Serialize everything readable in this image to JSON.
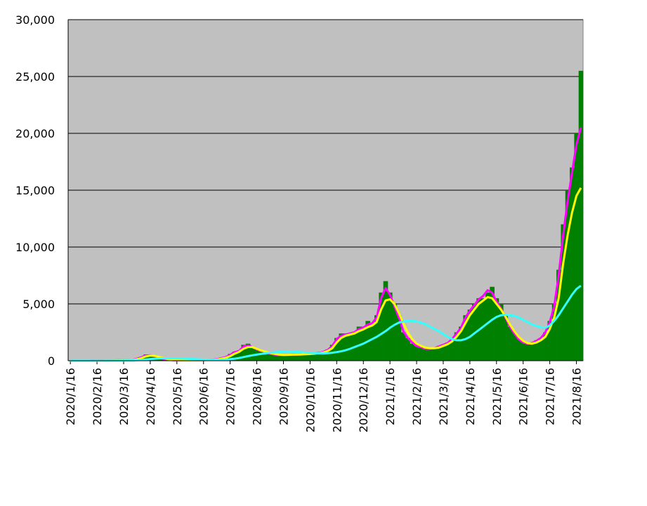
{
  "chart_data": {
    "type": "bar",
    "categories": [
      "2020/1/16",
      null,
      null,
      null,
      null,
      null,
      "2020/2/16",
      null,
      null,
      null,
      null,
      null,
      "2020/3/16",
      null,
      null,
      null,
      null,
      null,
      "2020/4/16",
      null,
      null,
      null,
      null,
      null,
      "2020/5/16",
      null,
      null,
      null,
      null,
      null,
      "2020/6/16",
      null,
      null,
      null,
      null,
      null,
      "2020/7/16",
      null,
      null,
      null,
      null,
      null,
      "2020/8/16",
      null,
      null,
      null,
      null,
      null,
      "2020/9/16",
      null,
      null,
      null,
      null,
      null,
      "2020/10/16",
      null,
      null,
      null,
      null,
      null,
      "2020/11/16",
      null,
      null,
      null,
      null,
      null,
      "2020/12/16",
      null,
      null,
      null,
      null,
      null,
      "2021/1/16",
      null,
      null,
      null,
      null,
      null,
      "2021/2/16",
      null,
      null,
      null,
      null,
      null,
      "2021/3/16",
      null,
      null,
      null,
      null,
      null,
      "2021/4/16",
      null,
      null,
      null,
      null,
      null,
      "2021/5/16",
      null,
      null,
      null,
      null,
      null,
      "2021/6/16",
      null,
      null,
      null,
      null,
      null,
      "2021/7/16",
      null,
      null,
      null,
      null,
      null,
      "2021/8/16",
      null
    ],
    "series": [
      {
        "type": "bar",
        "color": "#008000",
        "values": [
          0,
          0,
          0,
          0,
          0,
          5,
          10,
          15,
          20,
          20,
          30,
          50,
          40,
          50,
          80,
          200,
          350,
          550,
          500,
          400,
          250,
          150,
          80,
          50,
          30,
          20,
          30,
          40,
          40,
          50,
          50,
          60,
          80,
          150,
          250,
          350,
          600,
          800,
          900,
          1400,
          1500,
          1200,
          1000,
          900,
          800,
          600,
          550,
          500,
          500,
          550,
          550,
          550,
          550,
          600,
          600,
          650,
          700,
          800,
          1000,
          1400,
          2000,
          2400,
          2400,
          2400,
          2500,
          3000,
          3000,
          3500,
          3200,
          4000,
          6000,
          7000,
          6000,
          5000,
          4000,
          2500,
          2000,
          1500,
          1300,
          1200,
          1000,
          1000,
          1100,
          1300,
          1400,
          1600,
          2000,
          2500,
          3000,
          4000,
          4500,
          5000,
          5500,
          5500,
          6000,
          6500,
          5500,
          5000,
          4000,
          3000,
          2500,
          2000,
          1700,
          1500,
          1600,
          1800,
          2000,
          2500,
          3500,
          5000,
          8000,
          12000,
          15000,
          17000,
          20000,
          25500
        ]
      },
      {
        "type": "line",
        "color": "#ff00ff",
        "values": [
          0,
          0,
          0,
          0,
          2,
          5,
          10,
          14,
          18,
          20,
          28,
          40,
          42,
          48,
          70,
          170,
          300,
          450,
          480,
          400,
          260,
          160,
          90,
          50,
          35,
          30,
          35,
          40,
          45,
          50,
          55,
          60,
          75,
          130,
          220,
          320,
          520,
          750,
          850,
          1250,
          1350,
          1200,
          1000,
          850,
          750,
          600,
          550,
          500,
          500,
          520,
          540,
          540,
          550,
          580,
          600,
          640,
          680,
          780,
          950,
          1300,
          1900,
          2200,
          2300,
          2400,
          2500,
          2800,
          2900,
          3200,
          3300,
          3800,
          5500,
          6400,
          5800,
          4800,
          3800,
          2600,
          2000,
          1600,
          1300,
          1200,
          1050,
          1050,
          1100,
          1250,
          1400,
          1550,
          1900,
          2400,
          2900,
          3800,
          4400,
          4900,
          5400,
          5700,
          6200,
          6000,
          5200,
          4600,
          3800,
          3000,
          2400,
          1900,
          1600,
          1500,
          1550,
          1750,
          2000,
          2500,
          3400,
          4800,
          7500,
          11000,
          14000,
          16500,
          19000,
          20500
        ]
      },
      {
        "type": "line",
        "color": "#ffff00",
        "values": [
          0,
          0,
          0,
          0,
          1,
          3,
          6,
          10,
          14,
          18,
          24,
          32,
          38,
          44,
          60,
          120,
          230,
          380,
          450,
          430,
          330,
          230,
          140,
          80,
          50,
          40,
          38,
          40,
          45,
          50,
          52,
          58,
          65,
          100,
          170,
          260,
          400,
          620,
          780,
          1050,
          1200,
          1200,
          1050,
          900,
          800,
          680,
          600,
          540,
          510,
          520,
          530,
          540,
          550,
          570,
          590,
          620,
          660,
          720,
          860,
          1100,
          1600,
          2000,
          2200,
          2300,
          2400,
          2600,
          2750,
          2950,
          3100,
          3400,
          4500,
          5300,
          5400,
          5000,
          4200,
          3300,
          2500,
          1900,
          1500,
          1300,
          1150,
          1100,
          1100,
          1150,
          1300,
          1450,
          1700,
          2100,
          2600,
          3300,
          4000,
          4500,
          5000,
          5300,
          5600,
          5500,
          5000,
          4500,
          3900,
          3200,
          2600,
          2100,
          1750,
          1550,
          1500,
          1600,
          1800,
          2100,
          2800,
          3800,
          5500,
          8500,
          11000,
          13000,
          14500,
          15200
        ]
      },
      {
        "type": "line",
        "color": "#33ffff",
        "values": [
          0,
          0,
          0,
          0,
          0,
          1,
          2,
          4,
          6,
          8,
          10,
          14,
          18,
          22,
          28,
          45,
          70,
          110,
          150,
          180,
          200,
          210,
          215,
          210,
          205,
          195,
          180,
          160,
          140,
          120,
          100,
          90,
          80,
          80,
          90,
          110,
          140,
          180,
          240,
          320,
          400,
          480,
          540,
          600,
          650,
          700,
          740,
          770,
          790,
          800,
          790,
          770,
          750,
          720,
          690,
          660,
          640,
          640,
          660,
          700,
          760,
          830,
          920,
          1050,
          1200,
          1350,
          1500,
          1700,
          1900,
          2100,
          2350,
          2600,
          2900,
          3150,
          3350,
          3450,
          3500,
          3500,
          3450,
          3350,
          3200,
          3000,
          2800,
          2600,
          2350,
          2100,
          1900,
          1800,
          1800,
          1900,
          2100,
          2400,
          2700,
          3000,
          3300,
          3600,
          3850,
          4000,
          4050,
          4000,
          3950,
          3800,
          3600,
          3400,
          3200,
          3050,
          2950,
          2900,
          3100,
          3500,
          4000,
          4600,
          5200,
          5800,
          6300,
          6600
        ]
      }
    ],
    "ylim": [
      0,
      30000
    ],
    "yticks": [
      0,
      {
        "value": 5000,
        "label": "5,000"
      },
      {
        "value": 10000,
        "label": "10,000"
      },
      {
        "value": 15000,
        "label": "15,000"
      },
      {
        "value": 20000,
        "label": "20,000"
      },
      {
        "value": 25000,
        "label": "25,000"
      },
      {
        "value": 30000,
        "label": "30,000"
      }
    ],
    "grid": true,
    "background": "#c0c0c0"
  }
}
